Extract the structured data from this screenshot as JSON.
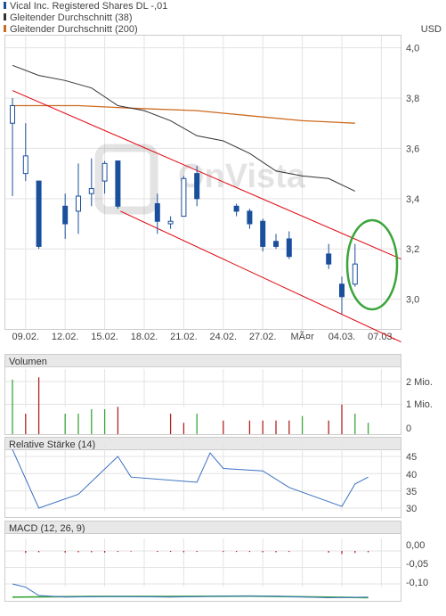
{
  "legend": [
    {
      "label": "Vical Inc. Registered Shares DL -,01",
      "color": "#1a4f9c"
    },
    {
      "label": "Gleitender Durchschnitt (38)",
      "color": "#333333"
    },
    {
      "label": "Gleitender Durchschnitt (200)",
      "color": "#cc6a1e"
    }
  ],
  "currency": "USD",
  "watermark": "OnVista",
  "colors": {
    "candle": "#1a4f9c",
    "ma38": "#333333",
    "ma200": "#cc6a1e",
    "trend": "#e0000a",
    "ellipse": "#3ba53b",
    "vol_up": "#3ba53b",
    "vol_down": "#b22222",
    "rsi": "#3a6fc2",
    "macd_signal": "#3ba53b",
    "macd_line": "#3a6fc2",
    "macd_hist": "#b22222",
    "grid": "#e3e3e3",
    "panel_header": "#e8e8e8"
  },
  "panels": {
    "volume": {
      "title": "Volumen",
      "ticks": [
        "2 Mio.",
        "1 Mio.",
        "0"
      ]
    },
    "rsi": {
      "title": "Relative Stärke (14)",
      "ticks": [
        "45",
        "40",
        "35",
        "30"
      ]
    },
    "macd": {
      "title": "MACD (12, 26, 9)",
      "ticks": [
        "0,00",
        "-0,05",
        "-0,10"
      ]
    }
  },
  "chart_data": {
    "type": "candlestick",
    "x_labels": [
      "09.02.",
      "12.02.",
      "15.02.",
      "18.02.",
      "21.02.",
      "24.02.",
      "27.02.",
      "MÃ¤r",
      "04.03.",
      "07.03."
    ],
    "y_ticks": [
      "4,0",
      "3,8",
      "3,6",
      "3,4",
      "3,2",
      "3,0"
    ],
    "ylim": [
      2.88,
      4.05
    ],
    "candles": [
      {
        "d": 0,
        "o": 3.7,
        "h": 3.8,
        "l": 3.41,
        "c": 3.77
      },
      {
        "d": 1,
        "o": 3.5,
        "h": 3.7,
        "l": 3.47,
        "c": 3.57
      },
      {
        "d": 2,
        "o": 3.47,
        "h": 3.47,
        "l": 3.2,
        "c": 3.21
      },
      {
        "d": 4,
        "o": 3.37,
        "h": 3.42,
        "l": 3.24,
        "c": 3.3
      },
      {
        "d": 5,
        "o": 3.35,
        "h": 3.54,
        "l": 3.26,
        "c": 3.41
      },
      {
        "d": 6,
        "o": 3.42,
        "h": 3.56,
        "l": 3.37,
        "c": 3.44
      },
      {
        "d": 7,
        "o": 3.47,
        "h": 3.55,
        "l": 3.42,
        "c": 3.54
      },
      {
        "d": 8,
        "o": 3.55,
        "h": 3.55,
        "l": 3.36,
        "c": 3.37
      },
      {
        "d": 11,
        "o": 3.38,
        "h": 3.42,
        "l": 3.26,
        "c": 3.31
      },
      {
        "d": 12,
        "o": 3.3,
        "h": 3.33,
        "l": 3.28,
        "c": 3.31
      },
      {
        "d": 13,
        "o": 3.33,
        "h": 3.49,
        "l": 3.33,
        "c": 3.48
      },
      {
        "d": 14,
        "o": 3.5,
        "h": 3.53,
        "l": 3.37,
        "c": 3.4
      },
      {
        "d": 17,
        "o": 3.37,
        "h": 3.38,
        "l": 3.33,
        "c": 3.35
      },
      {
        "d": 18,
        "o": 3.35,
        "h": 3.36,
        "l": 3.28,
        "c": 3.3
      },
      {
        "d": 19,
        "o": 3.31,
        "h": 3.32,
        "l": 3.19,
        "c": 3.21
      },
      {
        "d": 20,
        "o": 3.23,
        "h": 3.26,
        "l": 3.2,
        "c": 3.21
      },
      {
        "d": 21,
        "o": 3.24,
        "h": 3.27,
        "l": 3.16,
        "c": 3.17
      },
      {
        "d": 24,
        "o": 3.18,
        "h": 3.22,
        "l": 3.12,
        "c": 3.14
      },
      {
        "d": 25,
        "o": 3.06,
        "h": 3.09,
        "l": 2.94,
        "c": 3.01
      },
      {
        "d": 26,
        "o": 3.06,
        "h": 3.22,
        "l": 3.05,
        "c": 3.14
      }
    ],
    "ma38": [
      {
        "d": 0,
        "v": 3.93
      },
      {
        "d": 2,
        "v": 3.89
      },
      {
        "d": 4,
        "v": 3.87
      },
      {
        "d": 6,
        "v": 3.84
      },
      {
        "d": 8,
        "v": 3.77
      },
      {
        "d": 10,
        "v": 3.75
      },
      {
        "d": 12,
        "v": 3.71
      },
      {
        "d": 14,
        "v": 3.65
      },
      {
        "d": 16,
        "v": 3.63
      },
      {
        "d": 18,
        "v": 3.58
      },
      {
        "d": 20,
        "v": 3.51
      },
      {
        "d": 22,
        "v": 3.49
      },
      {
        "d": 24,
        "v": 3.48
      },
      {
        "d": 26,
        "v": 3.43
      }
    ],
    "ma200": [
      {
        "d": 0,
        "v": 3.77
      },
      {
        "d": 5,
        "v": 3.77
      },
      {
        "d": 9,
        "v": 3.76
      },
      {
        "d": 14,
        "v": 3.75
      },
      {
        "d": 18,
        "v": 3.73
      },
      {
        "d": 22,
        "v": 3.71
      },
      {
        "d": 26,
        "v": 3.7
      }
    ],
    "trend_upper": [
      {
        "d": 0,
        "v": 3.83
      },
      {
        "d": 29.5,
        "v": 3.16
      }
    ],
    "trend_lower": [
      {
        "d": 8.2,
        "v": 3.35
      },
      {
        "d": 29.5,
        "v": 2.83
      }
    ],
    "volume": [
      {
        "d": 0,
        "v": 2.4,
        "up": true
      },
      {
        "d": 1,
        "v": 0.9,
        "up": false
      },
      {
        "d": 2,
        "v": 2.5,
        "up": false
      },
      {
        "d": 4,
        "v": 0.9,
        "up": true
      },
      {
        "d": 5,
        "v": 0.9,
        "up": true
      },
      {
        "d": 6,
        "v": 1.1,
        "up": true
      },
      {
        "d": 7,
        "v": 1.1,
        "up": true
      },
      {
        "d": 8,
        "v": 1.2,
        "up": false
      },
      {
        "d": 12,
        "v": 0.9,
        "up": false
      },
      {
        "d": 13,
        "v": 0.5,
        "up": false
      },
      {
        "d": 14,
        "v": 0.9,
        "up": true
      },
      {
        "d": 16,
        "v": 0.6,
        "up": false
      },
      {
        "d": 18,
        "v": 0.6,
        "up": false
      },
      {
        "d": 19,
        "v": 0.6,
        "up": false
      },
      {
        "d": 20,
        "v": 0.6,
        "up": false
      },
      {
        "d": 21,
        "v": 0.6,
        "up": false
      },
      {
        "d": 22,
        "v": 0.8,
        "up": true
      },
      {
        "d": 24,
        "v": 0.6,
        "up": false
      },
      {
        "d": 25,
        "v": 1.3,
        "up": false
      },
      {
        "d": 26,
        "v": 0.9,
        "up": true
      },
      {
        "d": 27,
        "v": 0.5,
        "up": true
      }
    ],
    "rsi": [
      {
        "d": 0,
        "v": 47
      },
      {
        "d": 2,
        "v": 30
      },
      {
        "d": 5,
        "v": 34
      },
      {
        "d": 8,
        "v": 45
      },
      {
        "d": 9,
        "v": 39
      },
      {
        "d": 14,
        "v": 37.5
      },
      {
        "d": 15,
        "v": 46
      },
      {
        "d": 16,
        "v": 41.5
      },
      {
        "d": 19,
        "v": 40.8
      },
      {
        "d": 21,
        "v": 36
      },
      {
        "d": 25,
        "v": 30.5
      },
      {
        "d": 26,
        "v": 37
      },
      {
        "d": 27,
        "v": 39
      }
    ],
    "macd_line": [
      {
        "d": 0,
        "v": -0.1
      },
      {
        "d": 1,
        "v": -0.11
      },
      {
        "d": 2,
        "v": -0.135
      },
      {
        "d": 4,
        "v": -0.14
      },
      {
        "d": 8,
        "v": -0.138
      },
      {
        "d": 12,
        "v": -0.14
      },
      {
        "d": 16,
        "v": -0.137
      },
      {
        "d": 20,
        "v": -0.137
      },
      {
        "d": 24,
        "v": -0.142
      },
      {
        "d": 27,
        "v": -0.14
      }
    ],
    "macd_signal": [
      {
        "d": 0,
        "v": -0.14
      },
      {
        "d": 6,
        "v": -0.138
      },
      {
        "d": 12,
        "v": -0.138
      },
      {
        "d": 18,
        "v": -0.137
      },
      {
        "d": 24,
        "v": -0.14
      },
      {
        "d": 27,
        "v": -0.142
      }
    ],
    "macd_hist": [
      {
        "d": 1,
        "v": -0.006
      },
      {
        "d": 2,
        "v": -0.004
      },
      {
        "d": 4,
        "v": -0.005
      },
      {
        "d": 5,
        "v": -0.004
      },
      {
        "d": 6,
        "v": -0.004
      },
      {
        "d": 7,
        "v": -0.005
      },
      {
        "d": 8,
        "v": -0.003
      },
      {
        "d": 9,
        "v": -0.002
      },
      {
        "d": 11,
        "v": -0.003
      },
      {
        "d": 12,
        "v": -0.003
      },
      {
        "d": 13,
        "v": -0.004
      },
      {
        "d": 14,
        "v": -0.003
      },
      {
        "d": 16,
        "v": -0.003
      },
      {
        "d": 17,
        "v": -0.003
      },
      {
        "d": 18,
        "v": -0.003
      },
      {
        "d": 19,
        "v": -0.004
      },
      {
        "d": 20,
        "v": -0.004
      },
      {
        "d": 21,
        "v": -0.003
      },
      {
        "d": 24,
        "v": -0.005
      },
      {
        "d": 25,
        "v": -0.009
      },
      {
        "d": 26,
        "v": -0.006
      },
      {
        "d": 27,
        "v": -0.004
      }
    ]
  }
}
